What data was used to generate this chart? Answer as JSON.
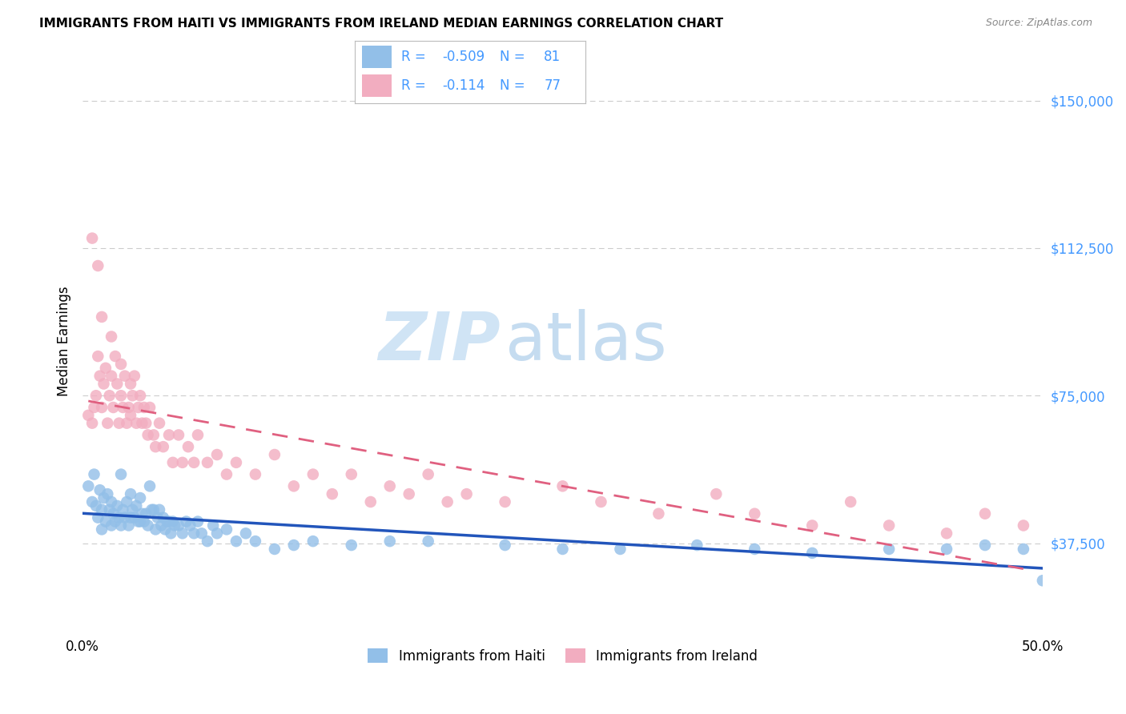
{
  "title": "IMMIGRANTS FROM HAITI VS IMMIGRANTS FROM IRELAND MEDIAN EARNINGS CORRELATION CHART",
  "source": "Source: ZipAtlas.com",
  "ylabel": "Median Earnings",
  "xlim": [
    0.0,
    0.5
  ],
  "ylim": [
    15000,
    162500
  ],
  "yticks": [
    37500,
    75000,
    112500,
    150000
  ],
  "ytick_labels": [
    "$37,500",
    "$75,000",
    "$112,500",
    "$150,000"
  ],
  "haiti_color": "#92bfe8",
  "ireland_color": "#f2adc0",
  "haiti_line_color": "#2255bb",
  "ireland_line_color": "#e06080",
  "axis_color": "#4499ff",
  "background_color": "#ffffff",
  "grid_color": "#cccccc",
  "watermark_zip": "ZIP",
  "watermark_atlas": "atlas",
  "haiti_R": -0.509,
  "haiti_N": 81,
  "ireland_R": -0.114,
  "ireland_N": 77,
  "haiti_scatter_x": [
    0.003,
    0.005,
    0.006,
    0.007,
    0.008,
    0.009,
    0.01,
    0.01,
    0.011,
    0.012,
    0.013,
    0.014,
    0.015,
    0.015,
    0.016,
    0.017,
    0.018,
    0.019,
    0.02,
    0.02,
    0.021,
    0.022,
    0.023,
    0.024,
    0.025,
    0.025,
    0.026,
    0.027,
    0.028,
    0.029,
    0.03,
    0.03,
    0.031,
    0.032,
    0.033,
    0.034,
    0.035,
    0.036,
    0.037,
    0.038,
    0.039,
    0.04,
    0.041,
    0.042,
    0.043,
    0.044,
    0.045,
    0.046,
    0.047,
    0.048,
    0.05,
    0.052,
    0.054,
    0.056,
    0.058,
    0.06,
    0.062,
    0.065,
    0.068,
    0.07,
    0.075,
    0.08,
    0.085,
    0.09,
    0.1,
    0.11,
    0.12,
    0.14,
    0.16,
    0.18,
    0.22,
    0.25,
    0.28,
    0.32,
    0.35,
    0.38,
    0.42,
    0.45,
    0.47,
    0.49,
    0.5
  ],
  "haiti_scatter_y": [
    52000,
    48000,
    55000,
    47000,
    44000,
    51000,
    46000,
    41000,
    49000,
    43000,
    50000,
    46000,
    48000,
    42000,
    45000,
    43000,
    47000,
    44000,
    55000,
    42000,
    46000,
    44000,
    48000,
    42000,
    50000,
    44000,
    46000,
    44000,
    47000,
    43000,
    49000,
    43000,
    45000,
    43000,
    45000,
    42000,
    52000,
    46000,
    46000,
    41000,
    44000,
    46000,
    42000,
    44000,
    41000,
    43000,
    43000,
    40000,
    43000,
    42000,
    42000,
    40000,
    43000,
    42000,
    40000,
    43000,
    40000,
    38000,
    42000,
    40000,
    41000,
    38000,
    40000,
    38000,
    36000,
    37000,
    38000,
    37000,
    38000,
    38000,
    37000,
    36000,
    36000,
    37000,
    36000,
    35000,
    36000,
    36000,
    37000,
    36000,
    28000
  ],
  "ireland_scatter_x": [
    0.003,
    0.005,
    0.006,
    0.007,
    0.008,
    0.009,
    0.01,
    0.011,
    0.012,
    0.013,
    0.014,
    0.015,
    0.016,
    0.017,
    0.018,
    0.019,
    0.02,
    0.021,
    0.022,
    0.023,
    0.024,
    0.025,
    0.026,
    0.027,
    0.028,
    0.029,
    0.03,
    0.031,
    0.032,
    0.033,
    0.034,
    0.035,
    0.037,
    0.038,
    0.04,
    0.042,
    0.045,
    0.047,
    0.05,
    0.052,
    0.055,
    0.058,
    0.06,
    0.065,
    0.07,
    0.075,
    0.08,
    0.09,
    0.1,
    0.11,
    0.12,
    0.13,
    0.14,
    0.15,
    0.16,
    0.17,
    0.18,
    0.19,
    0.2,
    0.22,
    0.25,
    0.27,
    0.3,
    0.33,
    0.35,
    0.38,
    0.4,
    0.42,
    0.45,
    0.47,
    0.49,
    0.005,
    0.008,
    0.01,
    0.015,
    0.02,
    0.025
  ],
  "ireland_scatter_y": [
    70000,
    68000,
    72000,
    75000,
    85000,
    80000,
    72000,
    78000,
    82000,
    68000,
    75000,
    80000,
    72000,
    85000,
    78000,
    68000,
    75000,
    72000,
    80000,
    68000,
    72000,
    78000,
    75000,
    80000,
    68000,
    72000,
    75000,
    68000,
    72000,
    68000,
    65000,
    72000,
    65000,
    62000,
    68000,
    62000,
    65000,
    58000,
    65000,
    58000,
    62000,
    58000,
    65000,
    58000,
    60000,
    55000,
    58000,
    55000,
    60000,
    52000,
    55000,
    50000,
    55000,
    48000,
    52000,
    50000,
    55000,
    48000,
    50000,
    48000,
    52000,
    48000,
    45000,
    50000,
    45000,
    42000,
    48000,
    42000,
    40000,
    45000,
    42000,
    115000,
    108000,
    95000,
    90000,
    83000,
    70000
  ]
}
